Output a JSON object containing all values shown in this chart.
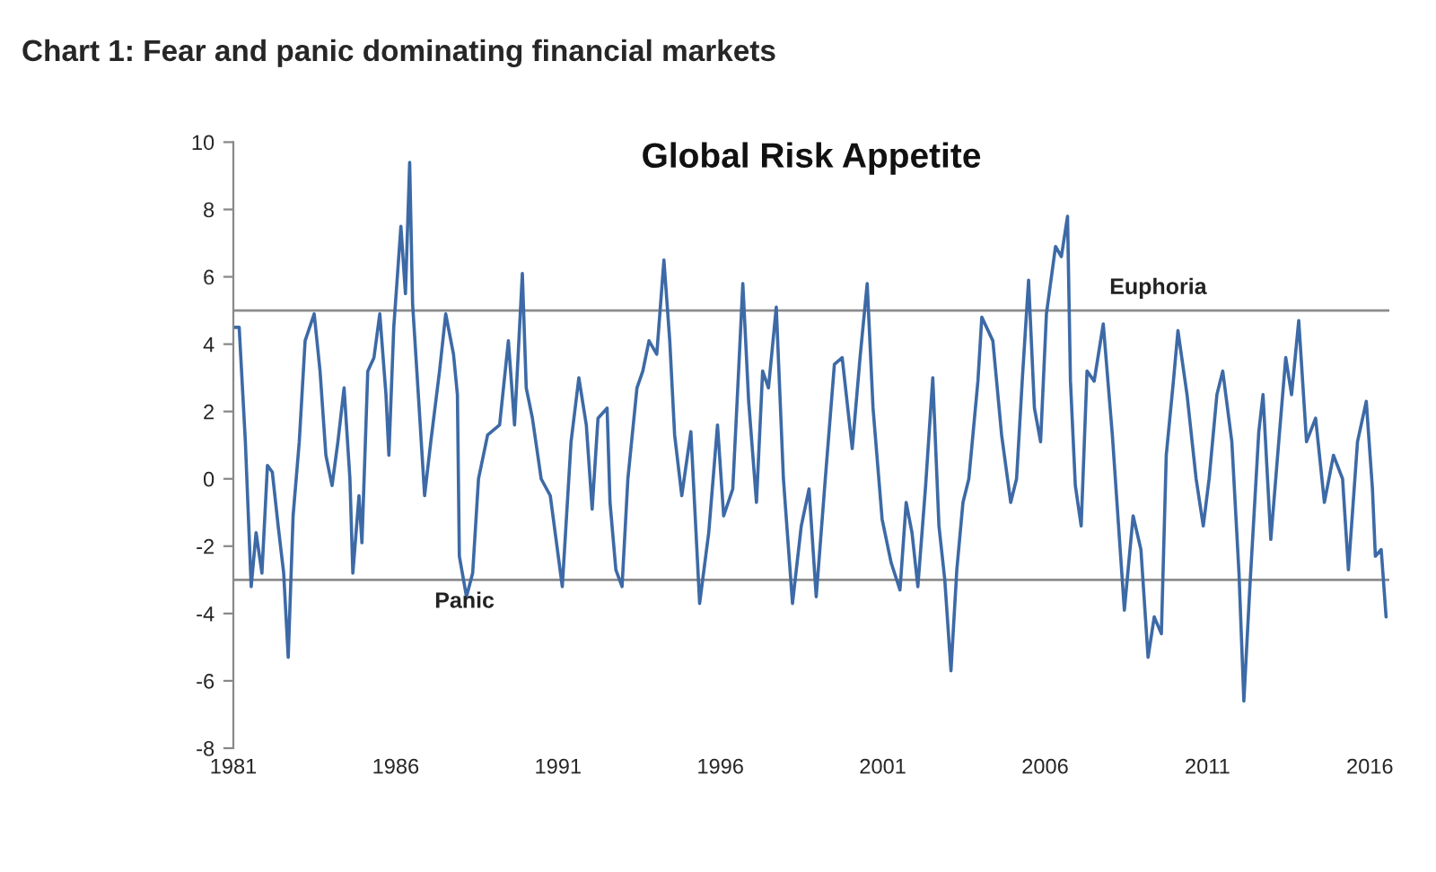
{
  "chart_data": {
    "type": "line",
    "title": "Chart 1: Fear and panic dominating financial markets",
    "subtitle": "Global Risk Appetite",
    "xlim": [
      1981,
      2016.6
    ],
    "xticks": [
      1981,
      1986,
      1991,
      1996,
      2001,
      2006,
      2011,
      2016
    ],
    "ylim": [
      -8,
      10
    ],
    "yticks": [
      -8,
      -6,
      -4,
      -2,
      0,
      2,
      4,
      6,
      8,
      10
    ],
    "grid": false,
    "legend": false,
    "marker": "none",
    "line_style": "solid",
    "ref_lines": [
      {
        "axis": "y",
        "value": 5,
        "label": "Euphoria",
        "color": "#8c8c8c"
      },
      {
        "axis": "y",
        "value": -3,
        "label": "Panic",
        "color": "#8c8c8c"
      }
    ],
    "series": [
      {
        "color": "#3d6aa6",
        "x": [
          1981.0,
          1981.18,
          1981.37,
          1981.55,
          1981.7,
          1981.88,
          1982.05,
          1982.2,
          1982.38,
          1982.55,
          1982.69,
          1982.84,
          1983.03,
          1983.21,
          1983.49,
          1983.67,
          1983.85,
          1984.04,
          1984.22,
          1984.41,
          1984.59,
          1984.68,
          1984.87,
          1984.96,
          1985.14,
          1985.33,
          1985.51,
          1985.7,
          1985.79,
          1985.94,
          1986.16,
          1986.3,
          1986.43,
          1986.52,
          1986.71,
          1986.89,
          1987.08,
          1987.35,
          1987.54,
          1987.78,
          1987.9,
          1987.96,
          1988.18,
          1988.37,
          1988.55,
          1988.83,
          1989.2,
          1989.47,
          1989.66,
          1989.9,
          1990.02,
          1990.21,
          1990.48,
          1990.76,
          1991.13,
          1991.4,
          1991.64,
          1991.87,
          1992.05,
          1992.23,
          1992.51,
          1992.6,
          1992.78,
          1992.97,
          1993.15,
          1993.43,
          1993.61,
          1993.8,
          1994.04,
          1994.26,
          1994.44,
          1994.59,
          1994.81,
          1995.09,
          1995.36,
          1995.64,
          1995.91,
          1996.1,
          1996.38,
          1996.56,
          1996.69,
          1996.87,
          1997.11,
          1997.3,
          1997.48,
          1997.72,
          1997.94,
          1998.22,
          1998.49,
          1998.73,
          1998.95,
          1999.23,
          1999.51,
          1999.75,
          2000.06,
          2000.3,
          2000.52,
          2000.7,
          2000.98,
          2001.26,
          2001.53,
          2001.72,
          2001.9,
          2002.08,
          2002.32,
          2002.54,
          2002.73,
          2002.91,
          2003.1,
          2003.28,
          2003.47,
          2003.65,
          2003.93,
          2004.05,
          2004.39,
          2004.66,
          2004.94,
          2005.12,
          2005.3,
          2005.49,
          2005.67,
          2005.86,
          2006.04,
          2006.32,
          2006.5,
          2006.69,
          2006.78,
          2006.93,
          2007.11,
          2007.29,
          2007.51,
          2007.79,
          2008.07,
          2008.29,
          2008.44,
          2008.71,
          2008.95,
          2009.17,
          2009.36,
          2009.58,
          2009.73,
          2009.95,
          2010.09,
          2010.37,
          2010.65,
          2010.87,
          2011.05,
          2011.29,
          2011.47,
          2011.75,
          2011.97,
          2012.12,
          2012.3,
          2012.58,
          2012.71,
          2012.95,
          2013.22,
          2013.41,
          2013.59,
          2013.81,
          2014.05,
          2014.33,
          2014.6,
          2014.88,
          2015.16,
          2015.34,
          2015.62,
          2015.89,
          2016.08,
          2016.17,
          2016.35,
          2016.5
        ],
        "values": [
          4.5,
          4.5,
          1.1,
          -3.2,
          -1.6,
          -2.8,
          0.4,
          0.2,
          -1.4,
          -2.8,
          -5.3,
          -1.1,
          1.1,
          4.1,
          4.9,
          3.2,
          0.7,
          -0.2,
          1.1,
          2.7,
          0.0,
          -2.8,
          -0.5,
          -1.9,
          3.2,
          3.6,
          4.9,
          2.5,
          0.7,
          4.5,
          7.5,
          5.5,
          9.4,
          5.2,
          2.3,
          -0.5,
          1.1,
          3.2,
          4.9,
          3.7,
          2.5,
          -2.3,
          -3.5,
          -2.8,
          0.0,
          1.3,
          1.6,
          4.1,
          1.6,
          6.1,
          2.7,
          1.8,
          0.0,
          -0.5,
          -3.2,
          1.1,
          3.0,
          1.6,
          -0.9,
          1.8,
          2.1,
          -0.7,
          -2.7,
          -3.2,
          0.0,
          2.7,
          3.2,
          4.1,
          3.7,
          6.5,
          4.1,
          1.3,
          -0.5,
          1.4,
          -3.7,
          -1.6,
          1.6,
          -1.1,
          -0.3,
          3.2,
          5.8,
          2.3,
          -0.7,
          3.2,
          2.7,
          5.1,
          0.0,
          -3.7,
          -1.4,
          -0.3,
          -3.5,
          0.0,
          3.4,
          3.6,
          0.9,
          3.6,
          5.8,
          2.1,
          -1.2,
          -2.5,
          -3.3,
          -0.7,
          -1.6,
          -3.2,
          -0.2,
          3.0,
          -1.4,
          -3.0,
          -5.7,
          -2.7,
          -0.7,
          0.0,
          2.9,
          4.8,
          4.1,
          1.3,
          -0.7,
          0.0,
          3.0,
          5.9,
          2.1,
          1.1,
          4.9,
          6.9,
          6.6,
          7.8,
          2.9,
          -0.2,
          -1.4,
          3.2,
          2.9,
          4.6,
          1.3,
          -1.8,
          -3.9,
          -1.1,
          -2.1,
          -5.3,
          -4.1,
          -4.6,
          0.7,
          2.9,
          4.4,
          2.5,
          0.0,
          -1.4,
          0.0,
          2.5,
          3.2,
          1.1,
          -2.8,
          -6.6,
          -3.3,
          1.4,
          2.5,
          -1.8,
          1.4,
          3.6,
          2.5,
          4.7,
          1.1,
          1.8,
          -0.7,
          0.7,
          0.0,
          -2.7,
          1.1,
          2.3,
          -0.3,
          -2.3,
          -2.1,
          -4.1
        ]
      }
    ]
  }
}
